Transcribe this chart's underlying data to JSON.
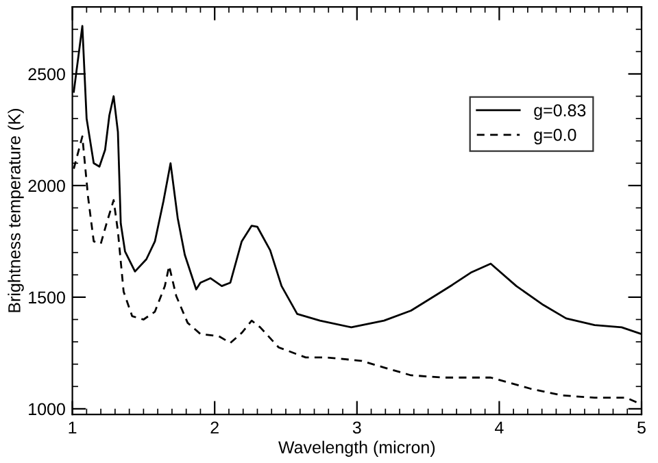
{
  "chart_data": {
    "type": "line",
    "xlabel": "Wavelength (micron)",
    "ylabel": "Brightness temperature (K)",
    "xlim": [
      1,
      5
    ],
    "ylim": [
      975,
      2800
    ],
    "xticks": [
      1,
      2,
      3,
      4,
      5
    ],
    "yticks": [
      1000,
      1500,
      2000,
      2500
    ],
    "grid": false,
    "legend": "top right",
    "marker": "none",
    "series": [
      {
        "name": "g=0.83",
        "color": "#000000",
        "line_style": "solid",
        "x": [
          1.01,
          1.07,
          1.1,
          1.15,
          1.19,
          1.23,
          1.26,
          1.29,
          1.32,
          1.34,
          1.37,
          1.44,
          1.52,
          1.58,
          1.64,
          1.69,
          1.74,
          1.79,
          1.87,
          1.9,
          1.97,
          2.05,
          2.11,
          2.19,
          2.26,
          2.3,
          2.39,
          2.47,
          2.58,
          2.74,
          2.96,
          3.19,
          3.38,
          3.57,
          3.67,
          3.8,
          3.94,
          4.12,
          4.31,
          4.47,
          4.67,
          4.86,
          5.0
        ],
        "values": [
          2420,
          2715,
          2300,
          2100,
          2085,
          2160,
          2315,
          2400,
          2240,
          1830,
          1705,
          1615,
          1670,
          1750,
          1930,
          2100,
          1855,
          1690,
          1535,
          1565,
          1585,
          1550,
          1565,
          1750,
          1820,
          1815,
          1710,
          1550,
          1425,
          1395,
          1365,
          1395,
          1440,
          1515,
          1555,
          1610,
          1650,
          1550,
          1465,
          1405,
          1375,
          1365,
          1335
        ]
      },
      {
        "name": "g=0.0",
        "color": "#000000",
        "line_style": "dashed",
        "x": [
          1.01,
          1.07,
          1.11,
          1.15,
          1.2,
          1.24,
          1.29,
          1.32,
          1.36,
          1.42,
          1.5,
          1.58,
          1.65,
          1.68,
          1.73,
          1.81,
          1.9,
          2.03,
          2.11,
          2.19,
          2.26,
          2.32,
          2.45,
          2.64,
          2.79,
          3.03,
          3.19,
          3.38,
          3.61,
          3.7,
          3.94,
          4.22,
          4.44,
          4.67,
          4.89,
          5.0
        ],
        "values": [
          2075,
          2220,
          1950,
          1750,
          1740,
          1830,
          1935,
          1795,
          1525,
          1415,
          1400,
          1435,
          1550,
          1640,
          1505,
          1385,
          1335,
          1325,
          1295,
          1340,
          1395,
          1365,
          1275,
          1230,
          1230,
          1215,
          1185,
          1150,
          1140,
          1140,
          1140,
          1090,
          1060,
          1050,
          1050,
          1020
        ]
      }
    ]
  }
}
